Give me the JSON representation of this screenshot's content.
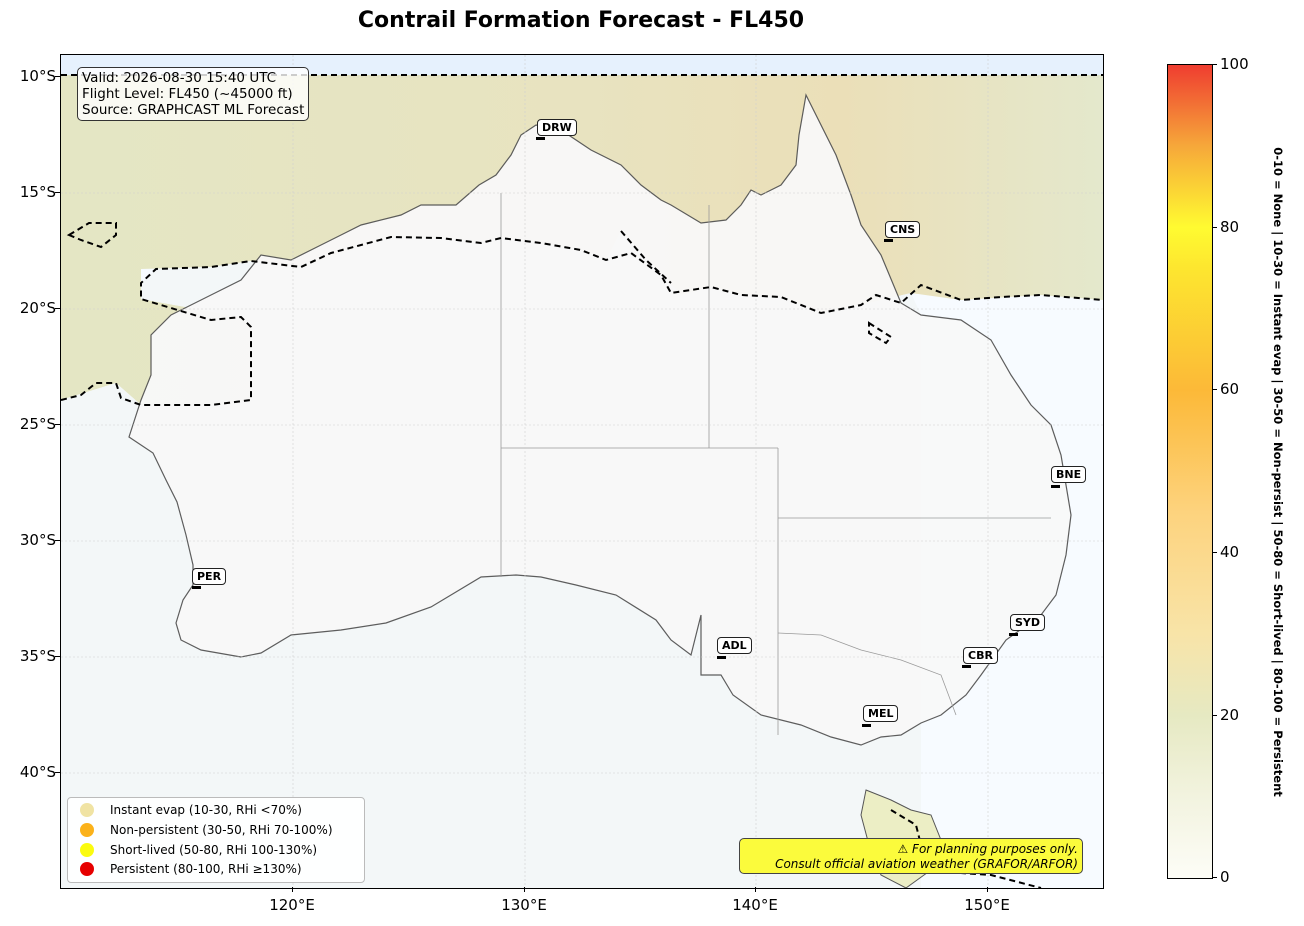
{
  "title": "Contrail Formation Forecast - FL450",
  "info": {
    "valid": "Valid: 2026-08-30 15:40 UTC",
    "flight_level": "Flight Level: FL450 (~45000 ft)",
    "source": "Source: GRAPHCAST ML Forecast"
  },
  "y_ticks": [
    "10°S",
    "15°S",
    "20°S",
    "25°S",
    "30°S",
    "35°S",
    "40°S"
  ],
  "x_ticks": [
    "120°E",
    "130°E",
    "140°E",
    "150°E"
  ],
  "cities": [
    {
      "code": "DRW"
    },
    {
      "code": "CNS"
    },
    {
      "code": "BNE"
    },
    {
      "code": "PER"
    },
    {
      "code": "SYD"
    },
    {
      "code": "ADL"
    },
    {
      "code": "CBR"
    },
    {
      "code": "MEL"
    }
  ],
  "legend": [
    {
      "label": "Instant evap (10-30, RHi <70%)",
      "color": "#f0e3a3"
    },
    {
      "label": "Non-persistent (30-50, RHi 70-100%)",
      "color": "#fbb21a"
    },
    {
      "label": "Short-lived (50-80, RHi 100-130%)",
      "color": "#fbfb0f"
    },
    {
      "label": "Persistent (80-100, RHi ≥130%)",
      "color": "#e60000"
    }
  ],
  "disclaimer": {
    "line1": "⚠ For planning purposes only.",
    "line2": "Consult official aviation weather (GRAFOR/ARFOR)"
  },
  "colorbar": {
    "ticks": [
      "0",
      "20",
      "40",
      "60",
      "80",
      "100"
    ],
    "side_label": "0-10 = None  |  10-30 = Instant evap  |  30-50 = Non-persist  |  50-80 = Short-lived  |  80-100 = Persistent"
  }
}
